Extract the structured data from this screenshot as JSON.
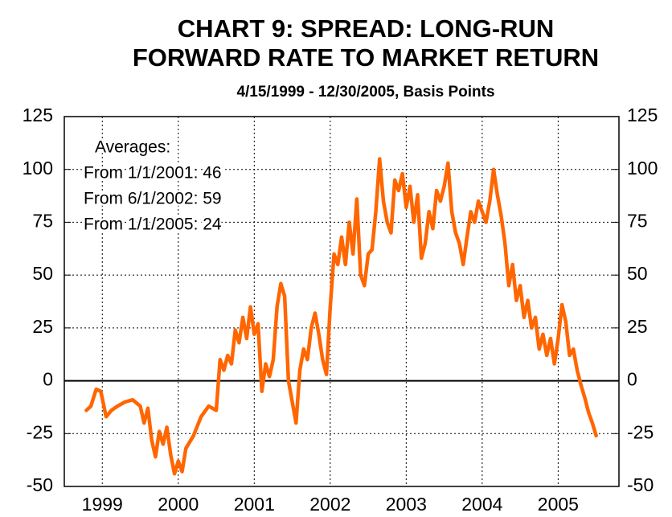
{
  "chart_data": {
    "type": "line",
    "title": [
      "CHART 9: SPREAD: LONG-RUN",
      "FORWARD RATE TO MARKET RETURN"
    ],
    "subtitle": "4/15/1999 - 12/30/2005, Basis Points",
    "annotations": [
      "Averages:",
      "From 1/1/2001: 46",
      "From 6/1/2002: 59",
      "From 1/1/2005: 24"
    ],
    "xlim": [
      1999.0,
      2006.3
    ],
    "xticks": [
      {
        "value": 1999.5,
        "label": "1999"
      },
      {
        "value": 2000.5,
        "label": "2000"
      },
      {
        "value": 2001.5,
        "label": "2001"
      },
      {
        "value": 2002.5,
        "label": "2002"
      },
      {
        "value": 2003.5,
        "label": "2003"
      },
      {
        "value": 2004.5,
        "label": "2004"
      },
      {
        "value": 2005.5,
        "label": "2005"
      }
    ],
    "ylim": [
      -50,
      125
    ],
    "yticks": [
      -50,
      -25,
      0,
      25,
      50,
      75,
      100,
      125
    ],
    "y2lim": [
      -50,
      125
    ],
    "y2ticks": [
      -50,
      -25,
      0,
      25,
      50,
      75,
      100,
      125
    ],
    "grid": true,
    "series": [
      {
        "name": "Spread",
        "color": "#ff6600",
        "x": [
          1999.29,
          1999.35,
          1999.42,
          1999.48,
          1999.55,
          1999.62,
          1999.7,
          1999.8,
          1999.9,
          2000.0,
          2000.05,
          2000.1,
          2000.15,
          2000.2,
          2000.25,
          2000.3,
          2000.35,
          2000.4,
          2000.45,
          2000.5,
          2000.55,
          2000.6,
          2000.7,
          2000.8,
          2000.9,
          2001.0,
          2001.05,
          2001.1,
          2001.15,
          2001.2,
          2001.25,
          2001.3,
          2001.35,
          2001.4,
          2001.45,
          2001.5,
          2001.55,
          2001.6,
          2001.65,
          2001.7,
          2001.75,
          2001.8,
          2001.85,
          2001.9,
          2001.95,
          2002.0,
          2002.05,
          2002.1,
          2002.15,
          2002.2,
          2002.25,
          2002.3,
          2002.35,
          2002.4,
          2002.45,
          2002.5,
          2002.55,
          2002.6,
          2002.65,
          2002.7,
          2002.75,
          2002.8,
          2002.85,
          2002.9,
          2002.95,
          2003.0,
          2003.05,
          2003.1,
          2003.15,
          2003.2,
          2003.25,
          2003.3,
          2003.35,
          2003.4,
          2003.45,
          2003.5,
          2003.55,
          2003.6,
          2003.65,
          2003.7,
          2003.75,
          2003.8,
          2003.85,
          2003.9,
          2003.95,
          2004.0,
          2004.05,
          2004.1,
          2004.15,
          2004.2,
          2004.25,
          2004.3,
          2004.35,
          2004.4,
          2004.45,
          2004.5,
          2004.55,
          2004.6,
          2004.65,
          2004.7,
          2004.75,
          2004.8,
          2004.85,
          2004.9,
          2004.95,
          2005.0,
          2005.05,
          2005.1,
          2005.15,
          2005.2,
          2005.25,
          2005.3,
          2005.35,
          2005.4,
          2005.45,
          2005.5,
          2005.55,
          2005.6,
          2005.65,
          2005.7,
          2005.75,
          2005.8,
          2005.85,
          2005.9,
          2005.95,
          2006.0
        ],
        "values": [
          -14,
          -12,
          -4,
          -5,
          -17,
          -14,
          -12,
          -10,
          -9,
          -12,
          -20,
          -13,
          -28,
          -36,
          -24,
          -30,
          -22,
          -35,
          -44,
          -38,
          -43,
          -32,
          -26,
          -17,
          -12,
          -14,
          10,
          5,
          12,
          8,
          24,
          18,
          30,
          20,
          35,
          22,
          27,
          -5,
          8,
          2,
          10,
          35,
          46,
          40,
          0,
          -10,
          -20,
          5,
          15,
          10,
          25,
          32,
          22,
          10,
          3,
          35,
          60,
          55,
          68,
          55,
          75,
          60,
          86,
          50,
          45,
          60,
          62,
          80,
          105,
          85,
          75,
          70,
          95,
          90,
          98,
          82,
          92,
          75,
          88,
          58,
          65,
          80,
          72,
          90,
          85,
          92,
          103,
          80,
          70,
          65,
          55,
          68,
          80,
          75,
          85,
          80,
          75,
          85,
          100,
          88,
          78,
          65,
          45,
          55,
          38,
          45,
          30,
          38,
          25,
          30,
          15,
          22,
          12,
          20,
          8,
          20,
          36,
          28,
          12,
          15,
          5,
          -2,
          -8,
          -15,
          -20,
          -26
        ]
      }
    ]
  }
}
